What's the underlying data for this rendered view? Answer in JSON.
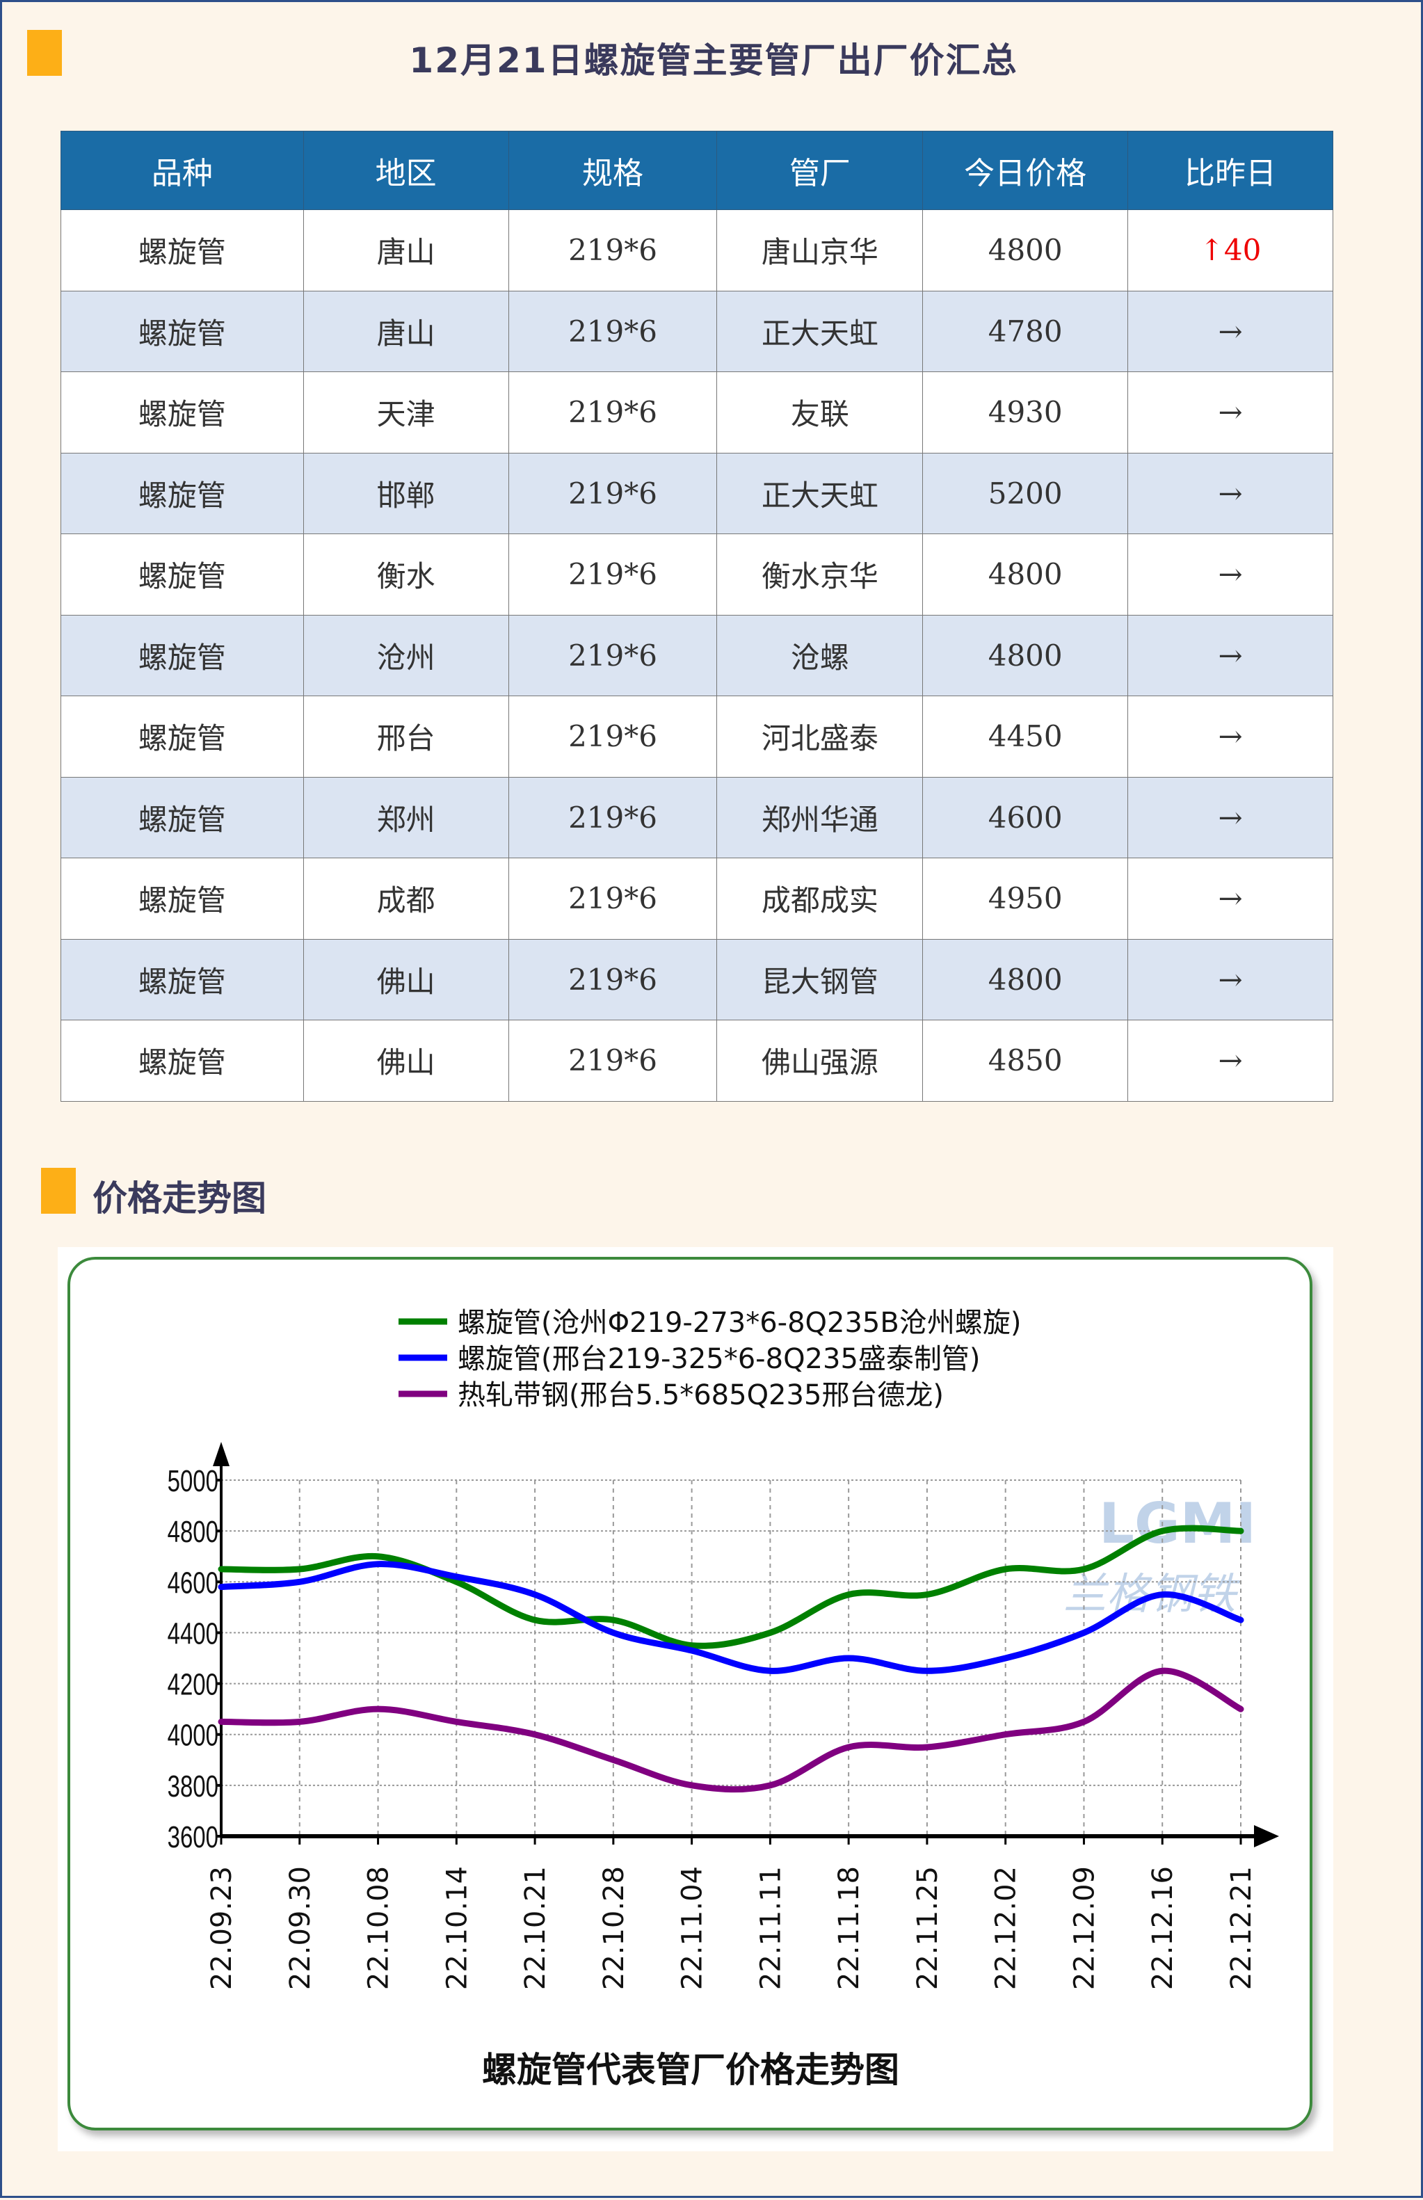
{
  "header": {
    "title": "12月21日螺旋管主要管厂出厂价汇总"
  },
  "table": {
    "columns": [
      "品种",
      "地区",
      "规格",
      "管厂",
      "今日价格",
      "比昨日"
    ],
    "rows": [
      [
        "螺旋管",
        "唐山",
        "219*6",
        "唐山京华",
        "4800",
        "↑40"
      ],
      [
        "螺旋管",
        "唐山",
        "219*6",
        "正大天虹",
        "4780",
        "→"
      ],
      [
        "螺旋管",
        "天津",
        "219*6",
        "友联",
        "4930",
        "→"
      ],
      [
        "螺旋管",
        "邯郸",
        "219*6",
        "正大天虹",
        "5200",
        "→"
      ],
      [
        "螺旋管",
        "衡水",
        "219*6",
        "衡水京华",
        "4800",
        "→"
      ],
      [
        "螺旋管",
        "沧州",
        "219*6",
        "沧螺",
        "4800",
        "→"
      ],
      [
        "螺旋管",
        "邢台",
        "219*6",
        "河北盛泰",
        "4450",
        "→"
      ],
      [
        "螺旋管",
        "郑州",
        "219*6",
        "郑州华通",
        "4600",
        "→"
      ],
      [
        "螺旋管",
        "成都",
        "219*6",
        "成都成实",
        "4950",
        "→"
      ],
      [
        "螺旋管",
        "佛山",
        "219*6",
        "昆大钢管",
        "4800",
        "→"
      ],
      [
        "螺旋管",
        "佛山",
        "219*6",
        "佛山强源",
        "4850",
        "→"
      ]
    ],
    "up_color": "#e00000"
  },
  "section": {
    "title": "价格走势图"
  },
  "chart_data": {
    "type": "line",
    "title": "螺旋管代表管厂价格走势图",
    "x": [
      "22.09.23",
      "22.09.30",
      "22.10.08",
      "22.10.14",
      "22.10.21",
      "22.10.28",
      "22.11.04",
      "22.11.11",
      "22.11.18",
      "22.11.25",
      "22.12.02",
      "22.12.09",
      "22.12.16",
      "22.12.21"
    ],
    "ylim": [
      3600,
      5000
    ],
    "yticks": [
      3600,
      3800,
      4000,
      4200,
      4400,
      4600,
      4800,
      5000
    ],
    "grid": true,
    "legend_position": "top-center",
    "series": [
      {
        "name": "螺旋管(沧州Φ219-273*6-8Q235B沧州螺旋)",
        "color": "#008000",
        "values": [
          4650,
          4650,
          4700,
          4600,
          4450,
          4450,
          4350,
          4400,
          4550,
          4550,
          4650,
          4650,
          4800,
          4800
        ]
      },
      {
        "name": "螺旋管(邢台219-325*6-8Q235盛泰制管)",
        "color": "#0000ff",
        "values": [
          4580,
          4600,
          4670,
          4620,
          4550,
          4400,
          4330,
          4250,
          4300,
          4250,
          4300,
          4400,
          4550,
          4450
        ]
      },
      {
        "name": "热轧带钢(邢台5.5*685Q235邢台德龙)",
        "color": "#800080",
        "values": [
          4050,
          4050,
          4100,
          4050,
          4000,
          3900,
          3800,
          3800,
          3950,
          3950,
          4000,
          4050,
          4250,
          4100
        ]
      }
    ],
    "watermark": {
      "logo": "LGMI",
      "text": "兰格钢铁"
    }
  }
}
